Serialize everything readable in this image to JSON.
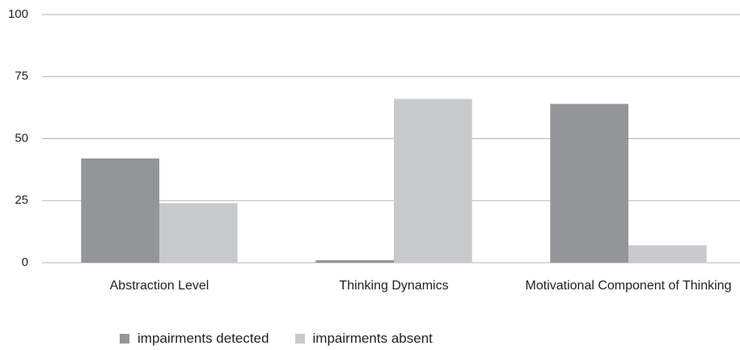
{
  "chart_data": {
    "type": "bar",
    "categories": [
      "Abstraction Level",
      "Thinking Dynamics",
      "Motivational Component of Thinking"
    ],
    "series": [
      {
        "name": "impairments detected",
        "color": "#939598",
        "values": [
          42,
          1,
          64
        ]
      },
      {
        "name": "impairments absent",
        "color": "#c8c9ca",
        "values": [
          24,
          66,
          7
        ]
      }
    ],
    "ylim": [
      0,
      100
    ],
    "yticks": [
      0,
      25,
      50,
      75,
      100
    ],
    "grid": true,
    "legend": "bottom"
  }
}
